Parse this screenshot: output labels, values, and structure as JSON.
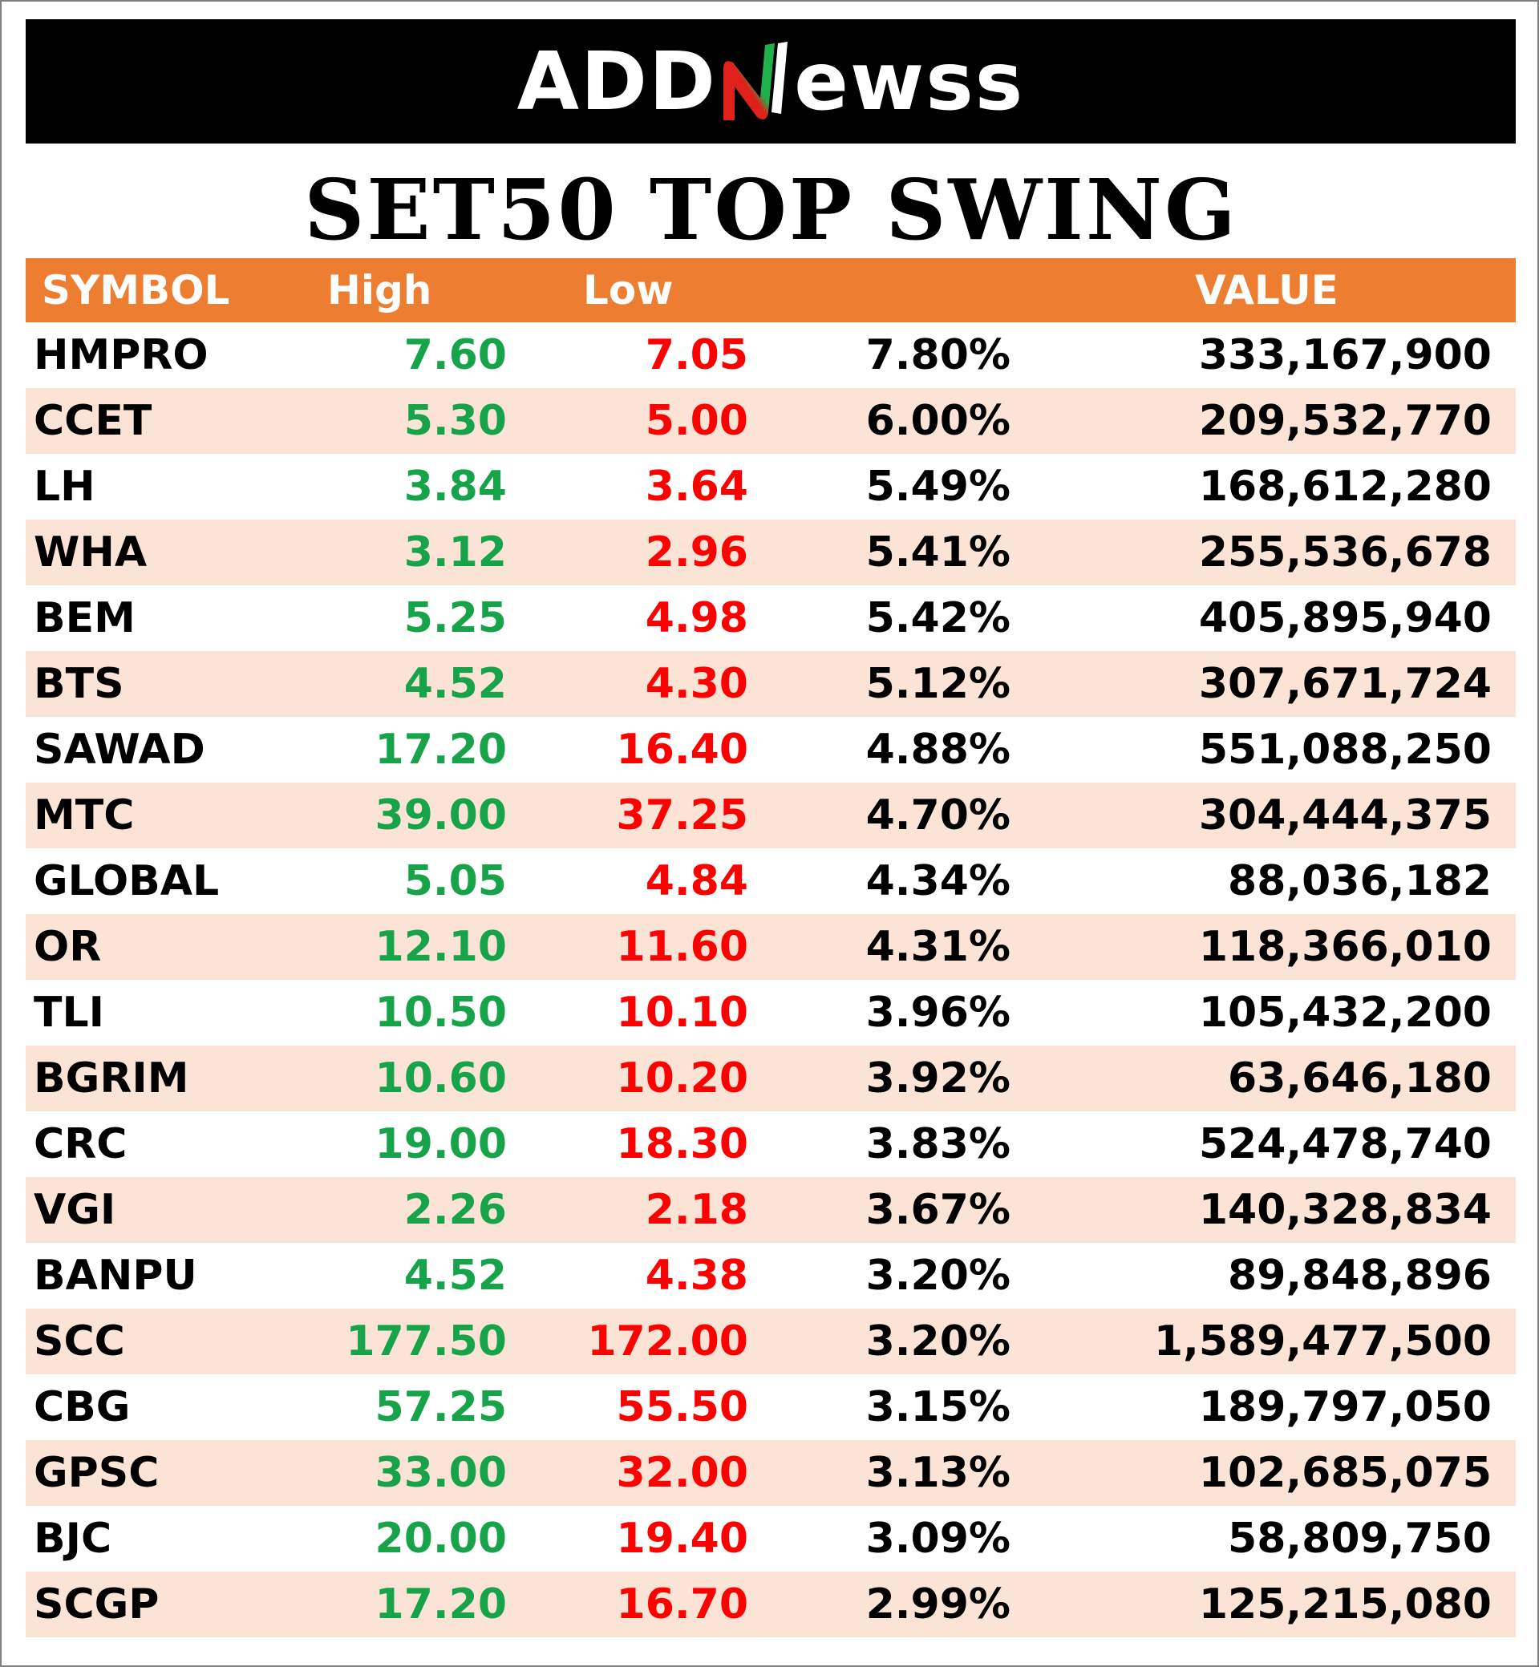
{
  "brand": {
    "logo_part1": "ADD",
    "logo_part2": "ewss",
    "accent_green": "#1fb14a",
    "accent_red": "#e0201b"
  },
  "title": "SET50 TOP SWING",
  "table": {
    "headers": {
      "symbol": "SYMBOL",
      "high": "High",
      "low": "Low",
      "pct": "",
      "value": "VALUE"
    },
    "rows": [
      {
        "symbol": "HMPRO",
        "high": "7.60",
        "low": "7.05",
        "pct": "7.80%",
        "value": "333,167,900"
      },
      {
        "symbol": "CCET",
        "high": "5.30",
        "low": "5.00",
        "pct": "6.00%",
        "value": "209,532,770"
      },
      {
        "symbol": "LH",
        "high": "3.84",
        "low": "3.64",
        "pct": "5.49%",
        "value": "168,612,280"
      },
      {
        "symbol": "WHA",
        "high": "3.12",
        "low": "2.96",
        "pct": "5.41%",
        "value": "255,536,678"
      },
      {
        "symbol": "BEM",
        "high": "5.25",
        "low": "4.98",
        "pct": "5.42%",
        "value": "405,895,940"
      },
      {
        "symbol": "BTS",
        "high": "4.52",
        "low": "4.30",
        "pct": "5.12%",
        "value": "307,671,724"
      },
      {
        "symbol": "SAWAD",
        "high": "17.20",
        "low": "16.40",
        "pct": "4.88%",
        "value": "551,088,250"
      },
      {
        "symbol": "MTC",
        "high": "39.00",
        "low": "37.25",
        "pct": "4.70%",
        "value": "304,444,375"
      },
      {
        "symbol": "GLOBAL",
        "high": "5.05",
        "low": "4.84",
        "pct": "4.34%",
        "value": "88,036,182"
      },
      {
        "symbol": "OR",
        "high": "12.10",
        "low": "11.60",
        "pct": "4.31%",
        "value": "118,366,010"
      },
      {
        "symbol": "TLI",
        "high": "10.50",
        "low": "10.10",
        "pct": "3.96%",
        "value": "105,432,200"
      },
      {
        "symbol": "BGRIM",
        "high": "10.60",
        "low": "10.20",
        "pct": "3.92%",
        "value": "63,646,180"
      },
      {
        "symbol": "CRC",
        "high": "19.00",
        "low": "18.30",
        "pct": "3.83%",
        "value": "524,478,740"
      },
      {
        "symbol": "VGI",
        "high": "2.26",
        "low": "2.18",
        "pct": "3.67%",
        "value": "140,328,834"
      },
      {
        "symbol": "BANPU",
        "high": "4.52",
        "low": "4.38",
        "pct": "3.20%",
        "value": "89,848,896"
      },
      {
        "symbol": "SCC",
        "high": "177.50",
        "low": "172.00",
        "pct": "3.20%",
        "value": "1,589,477,500"
      },
      {
        "symbol": "CBG",
        "high": "57.25",
        "low": "55.50",
        "pct": "3.15%",
        "value": "189,797,050"
      },
      {
        "symbol": "GPSC",
        "high": "33.00",
        "low": "32.00",
        "pct": "3.13%",
        "value": "102,685,075"
      },
      {
        "symbol": "BJC",
        "high": "20.00",
        "low": "19.40",
        "pct": "3.09%",
        "value": "58,809,750"
      },
      {
        "symbol": "SCGP",
        "high": "17.20",
        "low": "16.70",
        "pct": "2.99%",
        "value": "125,215,080"
      }
    ]
  }
}
